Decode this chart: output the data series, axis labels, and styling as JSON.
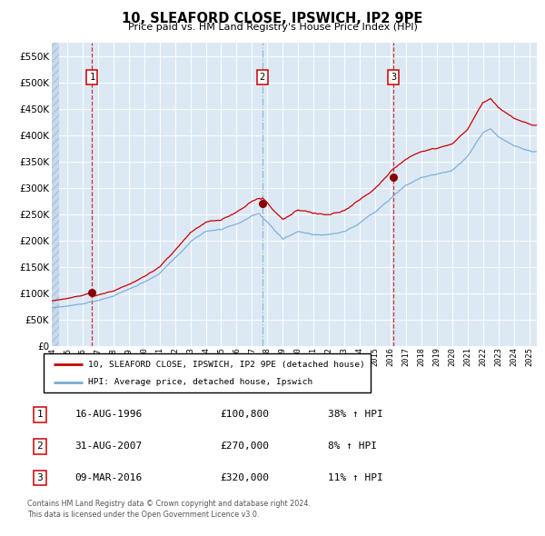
{
  "title": "10, SLEAFORD CLOSE, IPSWICH, IP2 9PE",
  "subtitle": "Price paid vs. HM Land Registry's House Price Index (HPI)",
  "footer_line1": "Contains HM Land Registry data © Crown copyright and database right 2024.",
  "footer_line2": "This data is licensed under the Open Government Licence v3.0.",
  "legend_red": "10, SLEAFORD CLOSE, IPSWICH, IP2 9PE (detached house)",
  "legend_blue": "HPI: Average price, detached house, Ipswich",
  "sales": [
    {
      "num": 1,
      "date": "16-AUG-1996",
      "price": 100800,
      "hpi_pct": "38% ↑ HPI"
    },
    {
      "num": 2,
      "date": "31-AUG-2007",
      "price": 270000,
      "hpi_pct": "8% ↑ HPI"
    },
    {
      "num": 3,
      "date": "09-MAR-2016",
      "price": 320000,
      "hpi_pct": "11% ↑ HPI"
    }
  ],
  "sale_dates_decimal": [
    1996.62,
    2007.66,
    2016.18
  ],
  "ylim": [
    0,
    575000
  ],
  "yticks": [
    0,
    50000,
    100000,
    150000,
    200000,
    250000,
    300000,
    350000,
    400000,
    450000,
    500000,
    550000
  ],
  "bg_color": "#dce9f5",
  "grid_color": "#ffffff",
  "red_line_color": "#cc0000",
  "blue_line_color": "#7aadd4",
  "sale_marker_color": "#880000",
  "vline1_color": "#cc0000",
  "vline2_color": "#7aadd4",
  "vline3_color": "#cc0000",
  "hpi_anchors_x": [
    1994.0,
    1995.0,
    1996.0,
    1997.0,
    1998.0,
    1999.0,
    2000.0,
    2001.0,
    2002.0,
    2003.0,
    2004.0,
    2005.0,
    2006.0,
    2007.0,
    2007.5,
    2008.0,
    2008.5,
    2009.0,
    2009.5,
    2010.0,
    2011.0,
    2012.0,
    2013.0,
    2014.0,
    2015.0,
    2016.0,
    2017.0,
    2018.0,
    2019.0,
    2020.0,
    2021.0,
    2022.0,
    2022.5,
    2023.0,
    2024.0,
    2025.25
  ],
  "hpi_anchors_y": [
    72000,
    76000,
    80000,
    88000,
    96000,
    108000,
    122000,
    138000,
    168000,
    198000,
    215000,
    220000,
    232000,
    248000,
    252000,
    238000,
    222000,
    208000,
    215000,
    222000,
    216000,
    215000,
    220000,
    237000,
    258000,
    283000,
    308000,
    322000,
    328000,
    335000,
    362000,
    408000,
    415000,
    400000,
    382000,
    370000
  ],
  "prop_scale_pre": 1.38,
  "prop_scale_1_2": 1.08,
  "prop_scale_post": 1.11
}
